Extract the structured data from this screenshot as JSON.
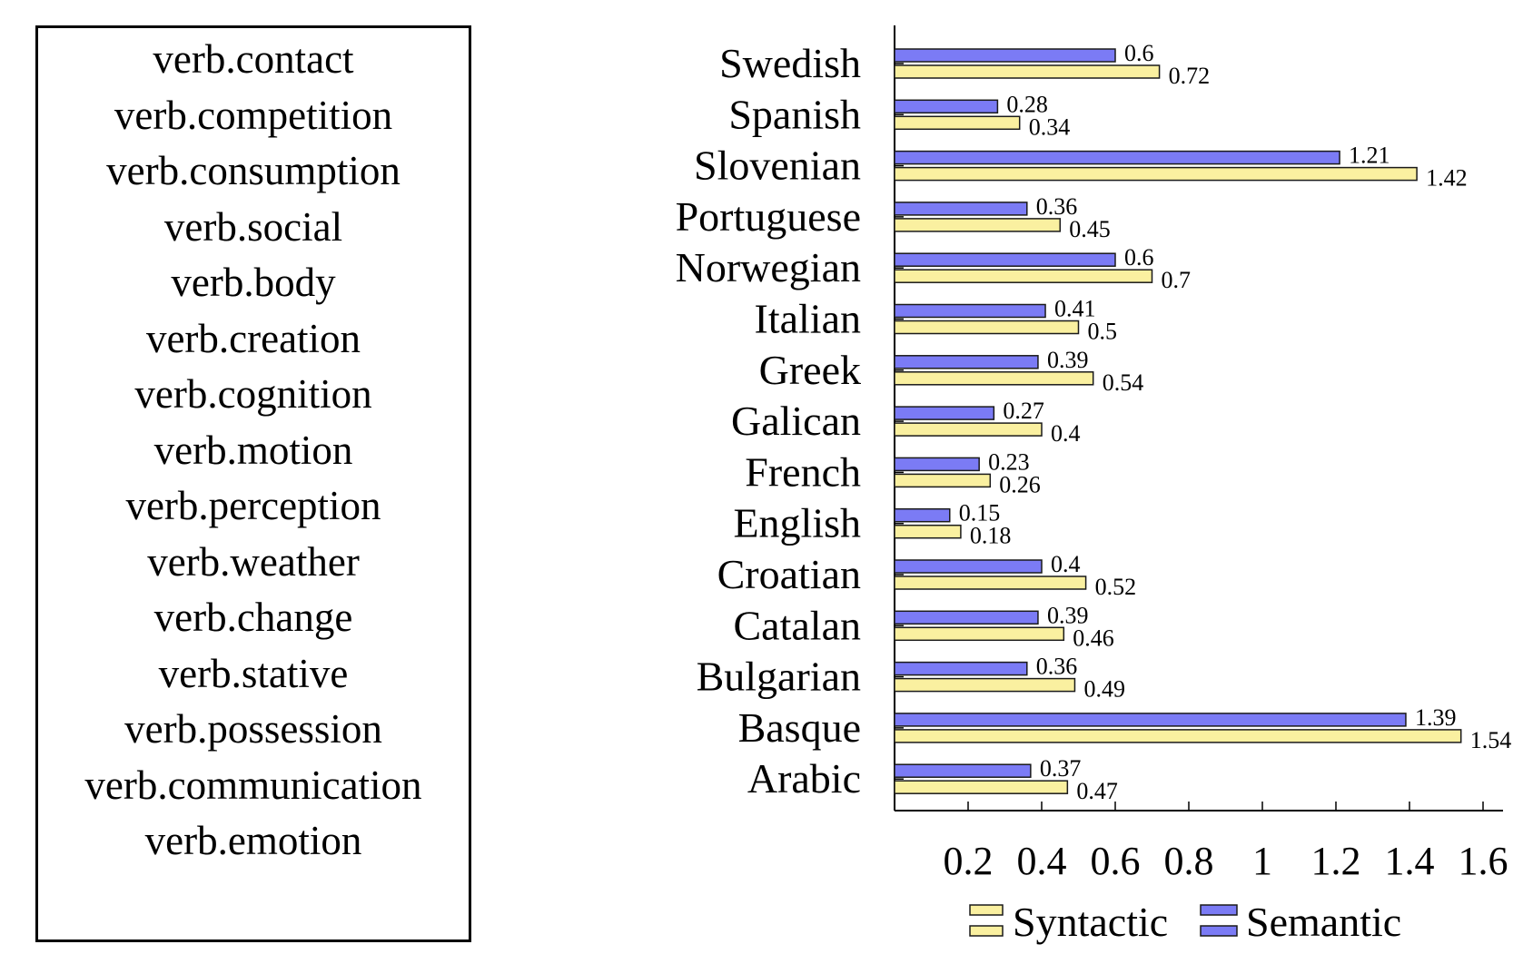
{
  "label_list": {
    "items": [
      "verb.contact",
      "verb.competition",
      "verb.consumption",
      "verb.social",
      "verb.body",
      "verb.creation",
      "verb.cognition",
      "verb.motion",
      "verb.perception",
      "verb.weather",
      "verb.change",
      "verb.stative",
      "verb.possession",
      "verb.communication",
      "verb.emotion"
    ]
  },
  "colors": {
    "syntactic": "#faf0a0",
    "semantic": "#7b7bf5",
    "stroke": "#1a1a1a"
  },
  "chart_data": {
    "type": "bar",
    "orientation": "horizontal",
    "title": "",
    "xlabel": "",
    "ylabel": "",
    "categories": [
      "Swedish",
      "Spanish",
      "Slovenian",
      "Portuguese",
      "Norwegian",
      "Italian",
      "Greek",
      "Galican",
      "French",
      "English",
      "Croatian",
      "Catalan",
      "Bulgarian",
      "Basque",
      "Arabic"
    ],
    "series": [
      {
        "name": "Semantic",
        "values": [
          0.6,
          0.28,
          1.21,
          0.36,
          0.6,
          0.41,
          0.39,
          0.27,
          0.23,
          0.15,
          0.4,
          0.39,
          0.36,
          1.39,
          0.37
        ]
      },
      {
        "name": "Syntactic",
        "values": [
          0.72,
          0.34,
          1.42,
          0.45,
          0.7,
          0.5,
          0.54,
          0.4,
          0.26,
          0.18,
          0.52,
          0.46,
          0.49,
          1.54,
          0.47
        ]
      }
    ],
    "data_labels": {
      "Semantic": [
        "0.6",
        "0.28",
        "1.21",
        "0.36",
        "0.6",
        "0.41",
        "0.39",
        "0.27",
        "0.23",
        "0.15",
        "0.4",
        "0.39",
        "0.36",
        "1.39",
        "0.37"
      ],
      "Syntactic": [
        "0.72",
        "0.34",
        "1.42",
        "0.45",
        "0.7",
        "0.5",
        "0.54",
        "0.4",
        "0.26",
        "0.18",
        "0.52",
        "0.46",
        "0.49",
        "1.54",
        "0.47"
      ]
    },
    "xlim": [
      0,
      1.66
    ],
    "xticks": [
      0.2,
      0.4,
      0.6,
      0.8,
      1,
      1.2,
      1.4,
      1.6
    ],
    "xtick_labels": [
      "0.2",
      "0.4",
      "0.6",
      "0.8",
      "1",
      "1.2",
      "1.4",
      "1.6"
    ],
    "grid": false,
    "legend": {
      "position": "bottom",
      "entries": [
        "Syntactic",
        "Semantic"
      ]
    }
  }
}
